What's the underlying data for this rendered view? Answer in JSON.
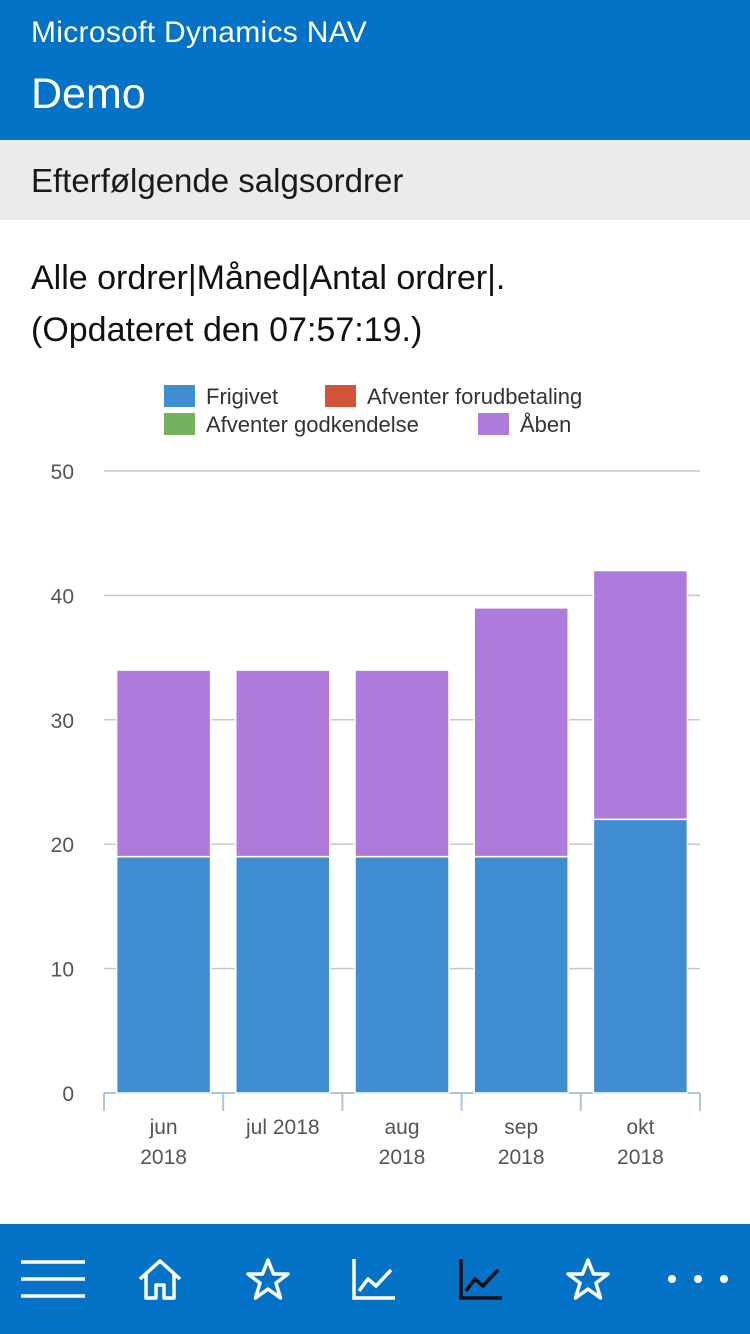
{
  "header": {
    "app_title": "Microsoft Dynamics NAV",
    "company": "Demo"
  },
  "selector": {
    "label": "Efterfølgende salgsordrer",
    "chevron_icon": "chevron-down-icon"
  },
  "chart_title": {
    "line1": "Alle ordrer|Måned|Antal ordrer|.",
    "line2": "(Opdateret den 07:57:19.)"
  },
  "chart_data": {
    "type": "bar",
    "stacked": true,
    "categories": [
      [
        "jun",
        "2018"
      ],
      [
        "jul 2018"
      ],
      [
        "aug",
        "2018"
      ],
      [
        "sep",
        "2018"
      ],
      [
        "okt",
        "2018"
      ]
    ],
    "series": [
      {
        "name": "Frigivet",
        "color": "#408dd1",
        "values": [
          19,
          19,
          19,
          19,
          22
        ]
      },
      {
        "name": "Afventer forudbetaling",
        "color": "#d2523b",
        "values": [
          0,
          0,
          0,
          0,
          0
        ]
      },
      {
        "name": "Afventer godkendelse",
        "color": "#74b25f",
        "values": [
          0,
          0,
          0,
          0,
          0
        ]
      },
      {
        "name": "Åben",
        "color": "#ae7bdc",
        "values": [
          15,
          15,
          15,
          20,
          20
        ]
      }
    ],
    "yticks": [
      "0",
      "10",
      "20",
      "30",
      "40",
      "50"
    ],
    "ylim": [
      0,
      50
    ],
    "grid": true,
    "legend_position": "top"
  },
  "bottom_nav": {
    "items": [
      {
        "icon": "menu-icon"
      },
      {
        "icon": "home-icon"
      },
      {
        "icon": "star-icon"
      },
      {
        "icon": "chart-icon"
      },
      {
        "icon": "chart-icon-active"
      },
      {
        "icon": "star-icon"
      },
      {
        "icon": "more-icon"
      }
    ]
  }
}
